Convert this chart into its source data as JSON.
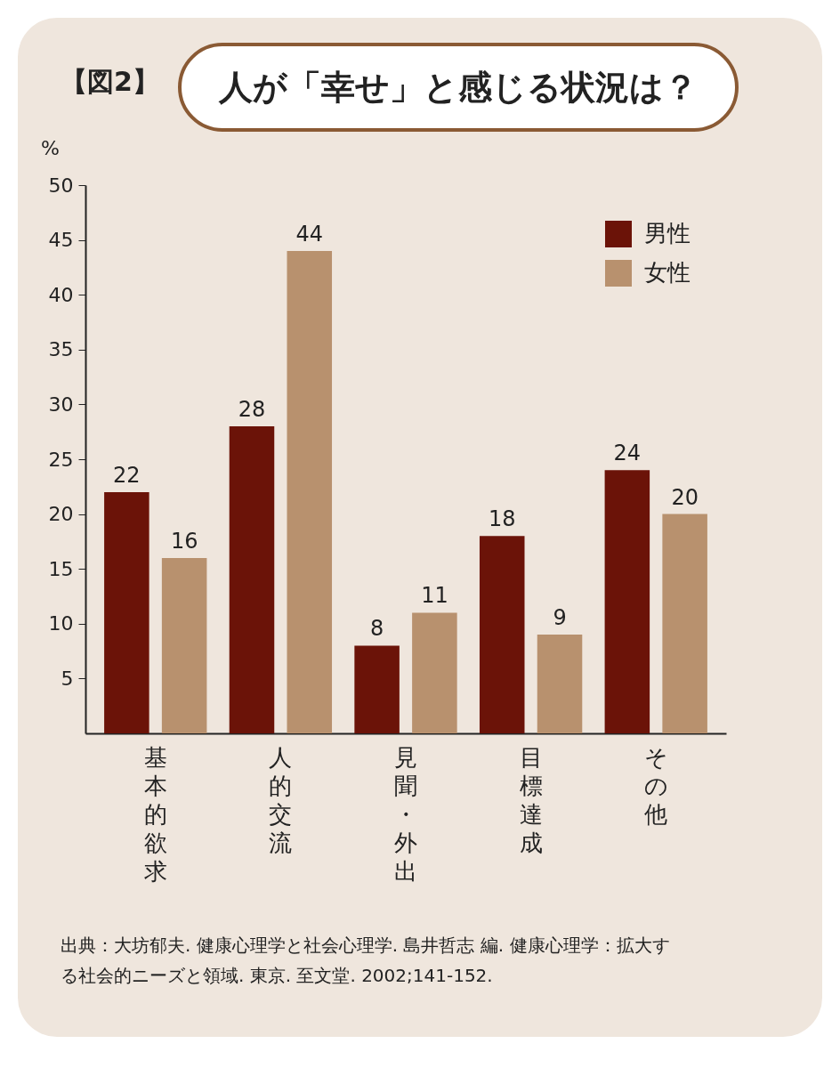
{
  "chart_data": {
    "type": "bar",
    "title": "人が「幸せ」と感じる状況は？",
    "ylabel": "%",
    "categories": [
      "基本的欲求",
      "人的交流",
      "見聞・外出",
      "目標達成",
      "その他"
    ],
    "series": [
      {
        "name": "男性",
        "color": "#6b1308",
        "values": [
          22,
          28,
          8,
          18,
          24
        ]
      },
      {
        "name": "女性",
        "color": "#b8916e",
        "values": [
          16,
          44,
          11,
          9,
          20
        ]
      }
    ],
    "ylim": [
      0,
      50
    ],
    "yticks": [
      5,
      10,
      15,
      20,
      25,
      30,
      35,
      40,
      45,
      50
    ],
    "data_labels": true,
    "grid": false,
    "legend": "top right",
    "annotations": [
      "【図2】",
      "出典：大坊郁夫. 健康心理学と社会心理学. 島井哲志 編. 健康心理学：拡大する社会的ニーズと領域. 東京. 至文堂. 2002;141-152."
    ]
  }
}
